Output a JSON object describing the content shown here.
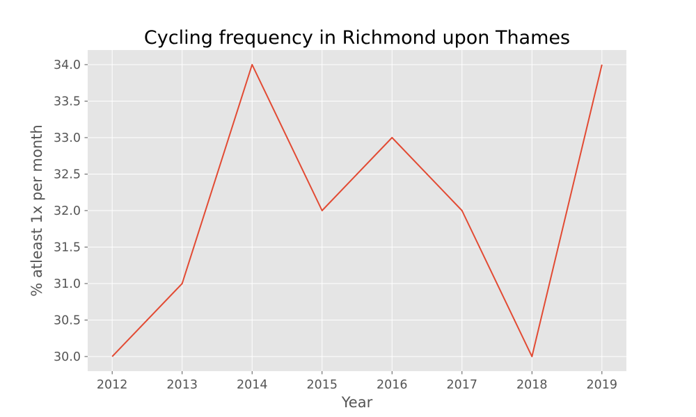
{
  "chart_data": {
    "type": "line",
    "title": "Cycling frequency in Richmond upon Thames",
    "xlabel": "Year",
    "ylabel": "% atleast 1x per month",
    "x": [
      2012,
      2013,
      2014,
      2015,
      2016,
      2017,
      2018,
      2019
    ],
    "series": [
      {
        "values": [
          30.0,
          31.0,
          34.0,
          32.0,
          33.0,
          32.0,
          30.0,
          34.0
        ]
      }
    ],
    "xlim": [
      2011.65,
      2019.35
    ],
    "ylim": [
      29.8,
      34.2
    ],
    "x_ticks": [
      "2012",
      "2013",
      "2014",
      "2015",
      "2016",
      "2017",
      "2018",
      "2019"
    ],
    "y_ticks": [
      "30.0",
      "30.5",
      "31.0",
      "31.5",
      "32.0",
      "32.5",
      "33.0",
      "33.5",
      "34.0"
    ],
    "grid": true,
    "line_color": "#E24A33",
    "background_color": "#E5E5E5"
  }
}
